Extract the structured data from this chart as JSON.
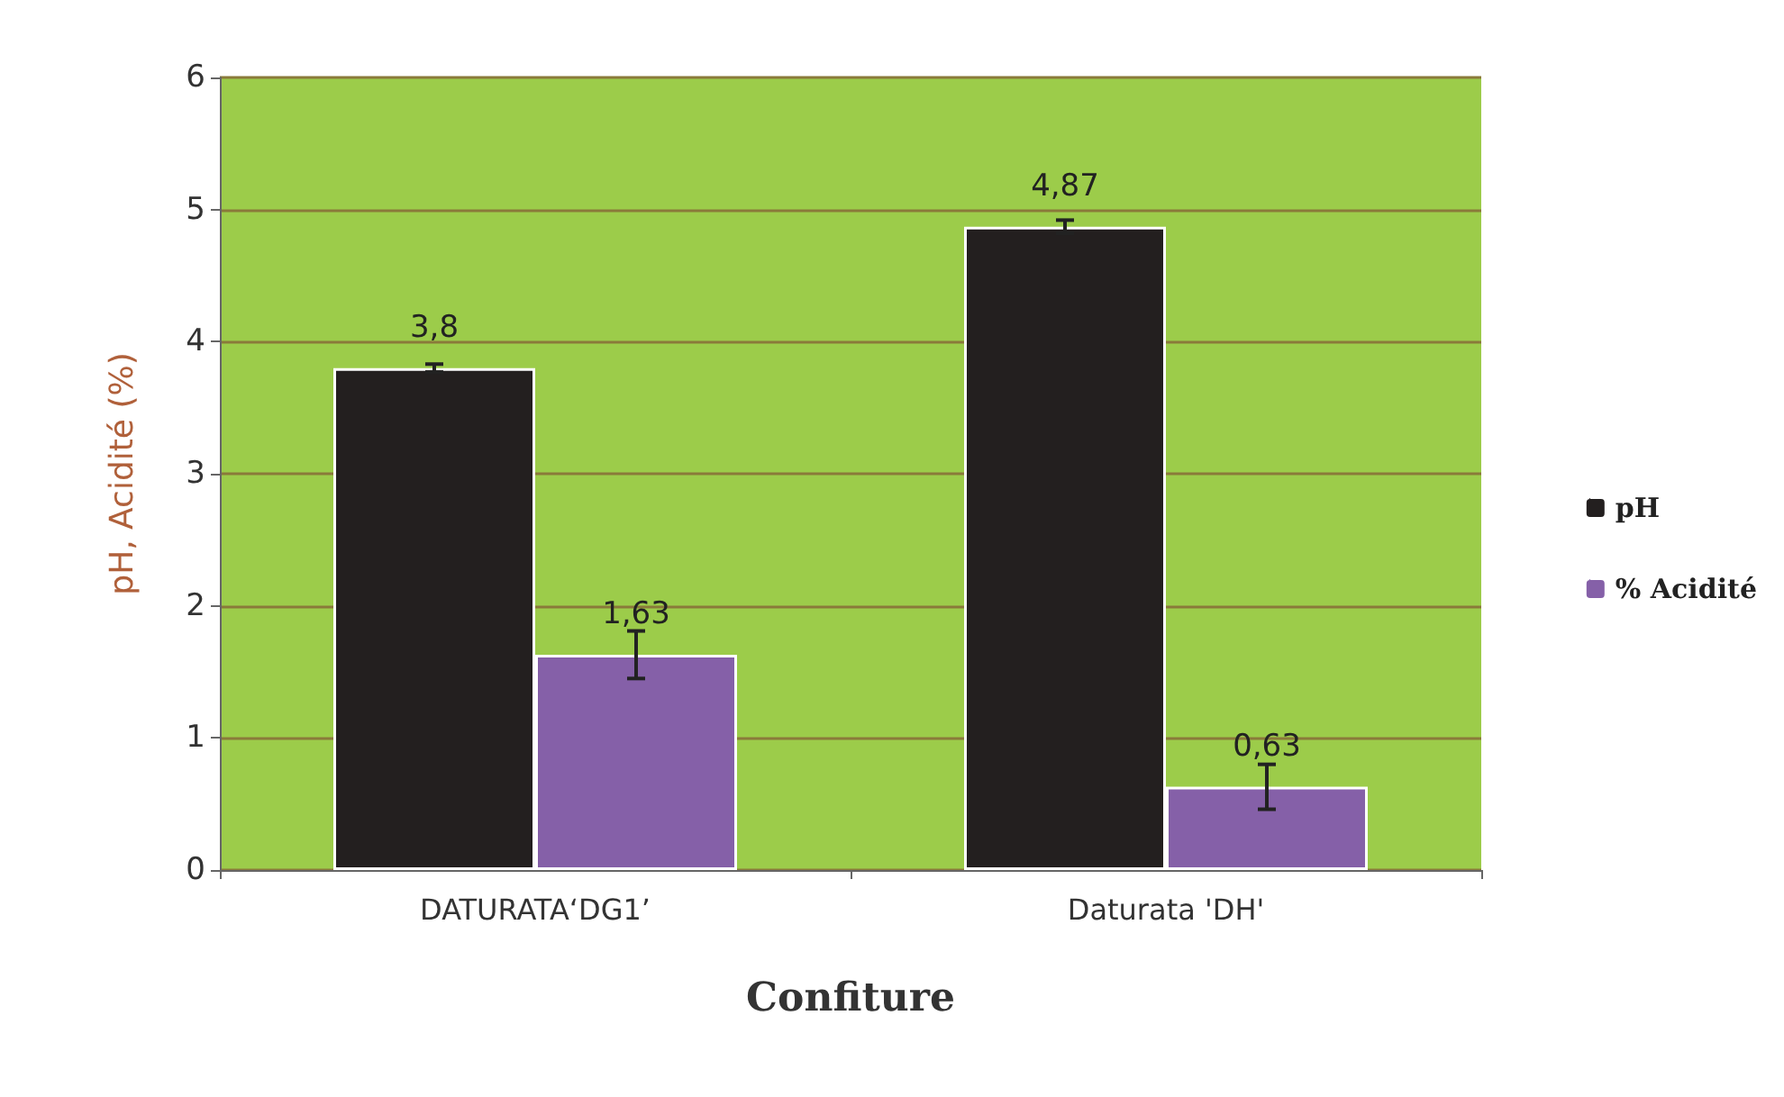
{
  "chart_data": {
    "type": "bar",
    "xlabel": "Confiture",
    "ylabel": "pH, Acidité (%)",
    "categories": [
      "DATURATA‘DG1’",
      "Daturata 'DH'"
    ],
    "series": [
      {
        "name": "pH",
        "color": "#231f1f",
        "values": [
          3.8,
          4.87
        ],
        "errors": [
          0.03,
          0.05
        ],
        "value_labels": [
          "3,8",
          "4,87"
        ]
      },
      {
        "name": "% Acidité",
        "color": "#8560a8",
        "values": [
          1.63,
          0.63
        ],
        "errors": [
          0.18,
          0.17
        ],
        "value_labels": [
          "1,63",
          "0,63"
        ]
      }
    ],
    "ylim": [
      0,
      6
    ],
    "yticks": [
      0,
      1,
      2,
      3,
      4,
      5,
      6
    ],
    "grid": "y",
    "legend": "right"
  }
}
